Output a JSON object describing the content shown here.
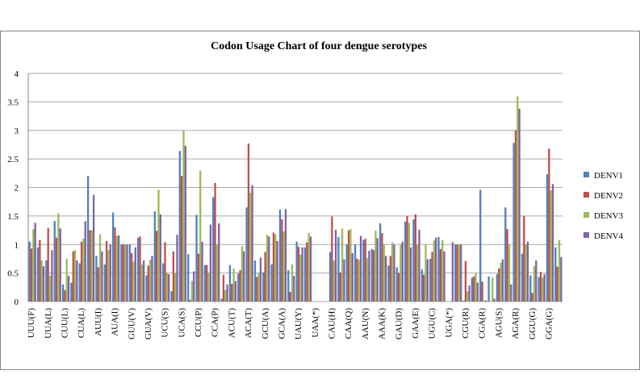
{
  "chart_data": {
    "type": "bar",
    "title": "Codon Usage Chart of four dengue serotypes",
    "categories": [
      "UUU(F)",
      null,
      "UUA(L)",
      null,
      "CUU(L)",
      null,
      "CUA(L)",
      null,
      "AUU(I)",
      null,
      "AUA(I)",
      null,
      "GUU(V)",
      null,
      "GUA(V)",
      null,
      "UCU(S)",
      null,
      "UCA(S)",
      null,
      "CCU(P)",
      null,
      "CCA(P)",
      null,
      "ACU(T)",
      null,
      "ACA(T)",
      null,
      "GCU(A)",
      null,
      "GCA(A)",
      null,
      "UAU(Y)",
      null,
      "UAA(*)",
      null,
      "CAU(H)",
      null,
      "CAA(Q)",
      null,
      "AAU(N)",
      null,
      "AAA(K)",
      null,
      "GAU(D)",
      null,
      "GAA(E)",
      null,
      "UGU(C)",
      null,
      "UGA(*)",
      null,
      "CGU(R)",
      null,
      "CGA(R)",
      null,
      "AGU(S)",
      null,
      "AGA(R)",
      null,
      "GGU(G)",
      null,
      "GGA(G)",
      null
    ],
    "series": [
      {
        "name": "DENV1",
        "color": "#4f81bd",
        "values": [
          1.05,
          0.95,
          0.72,
          1.41,
          0.3,
          0.33,
          0.67,
          2.2,
          0.8,
          0.65,
          1.56,
          1.0,
          1.0,
          1.12,
          0.46,
          1.58,
          0.67,
          0.18,
          2.64,
          0.83,
          1.52,
          0.64,
          1.83,
          0.05,
          0.64,
          0.49,
          1.65,
          0.72,
          0.51,
          0.65,
          1.61,
          0.55,
          1.05,
          0.95,
          0,
          0,
          0.87,
          1.13,
          1.0,
          1.0,
          1.08,
          0.92,
          1.37,
          0.63,
          0.6,
          1.4,
          1.44,
          0.56,
          0.75,
          1.13,
          0,
          1.0,
          0.02,
          0.42,
          1.96,
          0.44,
          0.48,
          1.65,
          2.78,
          0.84,
          0.46,
          0.43,
          2.23,
          0.95
        ]
      },
      {
        "name": "DENV2",
        "color": "#c0504d",
        "values": [
          0.93,
          1.08,
          1.29,
          1.12,
          0.2,
          0.88,
          1.05,
          1.25,
          0.6,
          1.06,
          1.3,
          1.0,
          0.85,
          1.14,
          0.63,
          1.24,
          1.04,
          0.88,
          2.2,
          0.03,
          0.84,
          0.64,
          2.08,
          0.47,
          0.31,
          0.55,
          2.77,
          0.43,
          0.87,
          1.21,
          1.44,
          0.17,
          0.96,
          1.04,
          0,
          0,
          1.49,
          0.51,
          1.25,
          0.75,
          1.1,
          0.9,
          1.2,
          0.8,
          0.5,
          1.5,
          1.53,
          0.47,
          0.87,
          0.92,
          0,
          1.0,
          0.71,
          0.44,
          0.35,
          0.0,
          0.58,
          1.27,
          3.0,
          1.5,
          0.15,
          0.52,
          2.68,
          0.61
        ]
      },
      {
        "name": "DENV3",
        "color": "#9bbb59",
        "values": [
          1.27,
          0.72,
          0.45,
          1.55,
          0.75,
          0.9,
          1.1,
          1.25,
          1.18,
          0.9,
          1.15,
          1.0,
          0.7,
          0.65,
          0.73,
          1.96,
          0.5,
          0.5,
          3.0,
          0.36,
          2.3,
          0.5,
          1.0,
          0.2,
          0.58,
          0.97,
          1.91,
          0.5,
          1.17,
          1.18,
          1.23,
          0.65,
          0.82,
          1.2,
          0,
          0,
          0.72,
          1.28,
          1.27,
          0.73,
          0.76,
          1.24,
          1.0,
          1.04,
          1.0,
          1.38,
          1.0,
          1.0,
          1.07,
          1.08,
          0,
          1.0,
          0.18,
          0.5,
          0.02,
          0.42,
          0.68,
          1.0,
          3.6,
          1.0,
          0.62,
          0.42,
          1.95,
          1.08
        ]
      },
      {
        "name": "DENV4",
        "color": "#8064a2",
        "values": [
          1.38,
          0.62,
          0.9,
          1.28,
          0.45,
          0.72,
          1.41,
          1.87,
          0.88,
          1.0,
          1.16,
          1.0,
          0.95,
          0.72,
          0.8,
          1.53,
          0.48,
          1.17,
          2.73,
          0.53,
          1.05,
          1.35,
          1.37,
          0.3,
          0.36,
          0.88,
          2.04,
          0.77,
          1.14,
          1.06,
          1.62,
          0.45,
          0.95,
          1.14,
          0,
          0,
          1.26,
          0.74,
          0.85,
          1.15,
          0.89,
          1.11,
          0.8,
          1.0,
          1.05,
          0.95,
          1.26,
          0.74,
          1.12,
          0.88,
          1.04,
          1.0,
          0.28,
          0.33,
          0.02,
          0.05,
          0.74,
          0.3,
          3.38,
          1.05,
          0.72,
          0.48,
          2.06,
          0.78
        ]
      }
    ],
    "ylim": [
      0,
      4
    ],
    "yticks": [
      0,
      0.5,
      1,
      1.5,
      2,
      2.5,
      3,
      3.5,
      4
    ],
    "grid": true,
    "legend": "right"
  }
}
